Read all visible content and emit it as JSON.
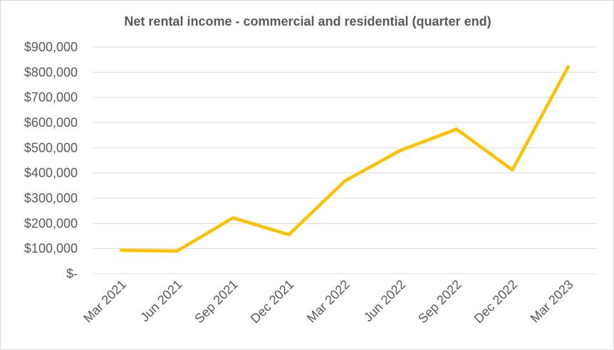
{
  "chart_data": {
    "type": "line",
    "title": "Net rental income - commercial and residential (quarter end)",
    "categories": [
      "Mar 2021",
      "Jun 2021",
      "Sep 2021",
      "Dec 2021",
      "Mar 2022",
      "Jun 2022",
      "Sep 2022",
      "Dec 2022",
      "Mar 2023"
    ],
    "series": [
      {
        "values": [
          93000,
          90000,
          222000,
          155000,
          368000,
          490000,
          574000,
          412000,
          822000
        ],
        "color": "#FFC000"
      }
    ],
    "ylim": [
      0,
      900000
    ],
    "yticks": [
      0,
      100000,
      200000,
      300000,
      400000,
      500000,
      600000,
      700000,
      800000,
      900000
    ],
    "ytick_labels": [
      "$-",
      "$100,000",
      "$200,000",
      "$300,000",
      "$400,000",
      "$500,000",
      "$600,000",
      "$700,000",
      "$800,000",
      "$900,000"
    ],
    "grid": true,
    "legend": false,
    "gridline_color": "#d9d9d9",
    "text_color": "#595959"
  }
}
